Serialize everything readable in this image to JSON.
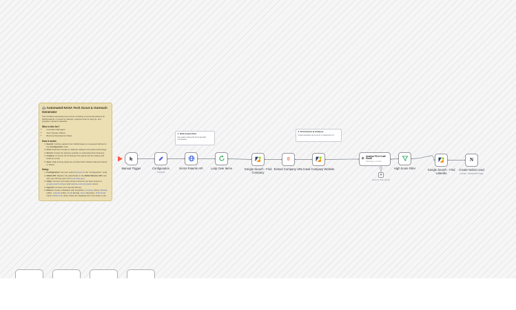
{
  "sticky_main": {
    "title": "🤖 Automated NASA Tech Scout & Outreach Generator",
    "intro": "This workflow automates the process of finding commercial partners for NASA patents. It scouts for startups, analyzes their fit using AI, and prepares outreach materials.",
    "who": {
      "title": "Who is this for?",
      "items": [
        "Innovation Managers",
        "Tech Transfer Offices",
        "Business Development Reps"
      ]
    },
    "how": {
      "title": "How it works",
      "items": [
        [
          {
            "t": "Search:",
            "s": "b"
          },
          {
            "t": " Fetches patents from NASA based on a keyword defined in the ",
            "s": "p"
          },
          {
            "t": "Configuration",
            "s": "b"
          },
          {
            "t": " node.",
            "s": "p"
          }
        ],
        [
          {
            "t": "Find:",
            "s": "b"
          },
          {
            "t": " Searches Google for startups related to the patent technology.",
            "s": "p"
          }
        ],
        [
          {
            "t": "Enrich:",
            "s": "b"
          },
          {
            "t": " Crawls the startup's website to understand their business.",
            "s": "p"
          }
        ],
        [
          {
            "t": "Analyze:",
            "s": "b"
          },
          {
            "t": " AI scores the fit between the patent and the startup and drafts an email.",
            "s": "p"
          }
        ],
        [
          {
            "t": "Save:",
            "s": "b"
          },
          {
            "t": " High-scoring leads are enriched with LinkedIn data and saved to Notion.",
            "s": "p"
          }
        ]
      ]
    },
    "setup": {
      "title": "Setup",
      "items": [
        [
          {
            "t": "Configuration:",
            "s": "b"
          },
          {
            "t": " Set your search ",
            "s": "p"
          },
          {
            "t": "keyword",
            "s": "l"
          },
          {
            "t": " in the \"Configuration\" node.",
            "s": "p"
          }
        ],
        [
          {
            "t": "NASA API:",
            "s": "b"
          },
          {
            "t": " Replace the placeholder in the ",
            "s": "p"
          },
          {
            "t": "NASA Patents API",
            "s": "b"
          },
          {
            "t": " node with your API key (get it from ",
            "s": "p"
          },
          {
            "t": "api.nasa.gov",
            "s": "l"
          },
          {
            "t": ").",
            "s": "p"
          }
        ],
        [
          {
            "t": "Apify:",
            "s": "b"
          },
          {
            "t": " Connect your Apify account. Ensure you have access to ",
            "s": "p"
          },
          {
            "t": "google-search-scraper",
            "s": "l"
          },
          {
            "t": " and ",
            "s": "p"
          },
          {
            "t": "website-content-crawler",
            "s": "l"
          },
          {
            "t": " actors.",
            "s": "p"
          }
        ],
        [
          {
            "t": "OpenAI:",
            "s": "b"
          },
          {
            "t": " Connect your OpenAI API key.",
            "s": "p"
          }
        ],
        [
          {
            "t": "Notion:",
            "s": "b"
          },
          {
            "t": " Create a database with properties: ",
            "s": "p"
          },
          {
            "t": "Company",
            "s": "l"
          },
          {
            "t": " (Text), ",
            "s": "p"
          },
          {
            "t": "Website",
            "s": "l"
          },
          {
            "t": " (URL), ",
            "s": "p"
          },
          {
            "t": "LinkedIn",
            "s": "l"
          },
          {
            "t": " (URL), ",
            "s": "p"
          },
          {
            "t": "Email",
            "s": "l"
          },
          {
            "t": " (Email), ",
            "s": "p"
          },
          {
            "t": "Score",
            "s": "l"
          },
          {
            "t": " (Number), ",
            "s": "p"
          },
          {
            "t": "Draft Email",
            "s": "l"
          },
          {
            "t": " (Text), ",
            "s": "p"
          },
          {
            "t": "NASA Tech",
            "s": "l"
          },
          {
            "t": " (Text). Paste the Database ID in the Notion node.",
            "s": "p"
          }
        ]
      ]
    }
  },
  "sticky_notes": [
    {
      "title": "1. Data Acquisition",
      "text": "Get patent data and find potential companies."
    },
    {
      "title": "2. Enrichment & Analysis",
      "text": "Crawl websites and use AI to determine fit."
    }
  ],
  "nodes": [
    {
      "label": "Manual Trigger",
      "icon": "mouse-pointer-icon"
    },
    {
      "label": "Configuration",
      "sub": "manual",
      "icon": "pencil-icon"
    },
    {
      "label": "NASA Patents API",
      "icon": "globe-icon"
    },
    {
      "label": "Loop Over Items",
      "icon": "loop-icon"
    },
    {
      "label": "Google Search - Find Company",
      "icon": "apify-icon"
    },
    {
      "label": "Extract Company URL",
      "icon": "code-braces-icon"
    },
    {
      "label": "Crawl Company Website",
      "icon": "apify-icon"
    },
    {
      "label": "Analyze Fit & Craft Email",
      "sub": "Message a model",
      "icon": "openai-icon"
    },
    {
      "label": "High Score Filter",
      "icon": "filter-icon"
    },
    {
      "label": "Google Search - Find LinkedIn",
      "icon": "apify-icon"
    },
    {
      "label": "Create Notion Lead",
      "sub": "create: databasePage",
      "icon": "notion-icon"
    }
  ],
  "ai_subnode": {
    "label": "OpenAI Chat Model"
  },
  "colors": {
    "sticky_bg": "#ecdfb4",
    "sticky_border": "#d2bf7e",
    "link_blue": "#4a67c8",
    "apify_navy": "#2b3a67",
    "apify_green": "#8fd400",
    "apify_orange": "#ff8800",
    "loop_green": "#1ea14a",
    "filter_green": "#18a058",
    "http_blue": "#3b63d8",
    "code_orange": "#f05c36",
    "pencil_blue": "#5a63d8",
    "run_arrow_red": "#ff5745"
  }
}
